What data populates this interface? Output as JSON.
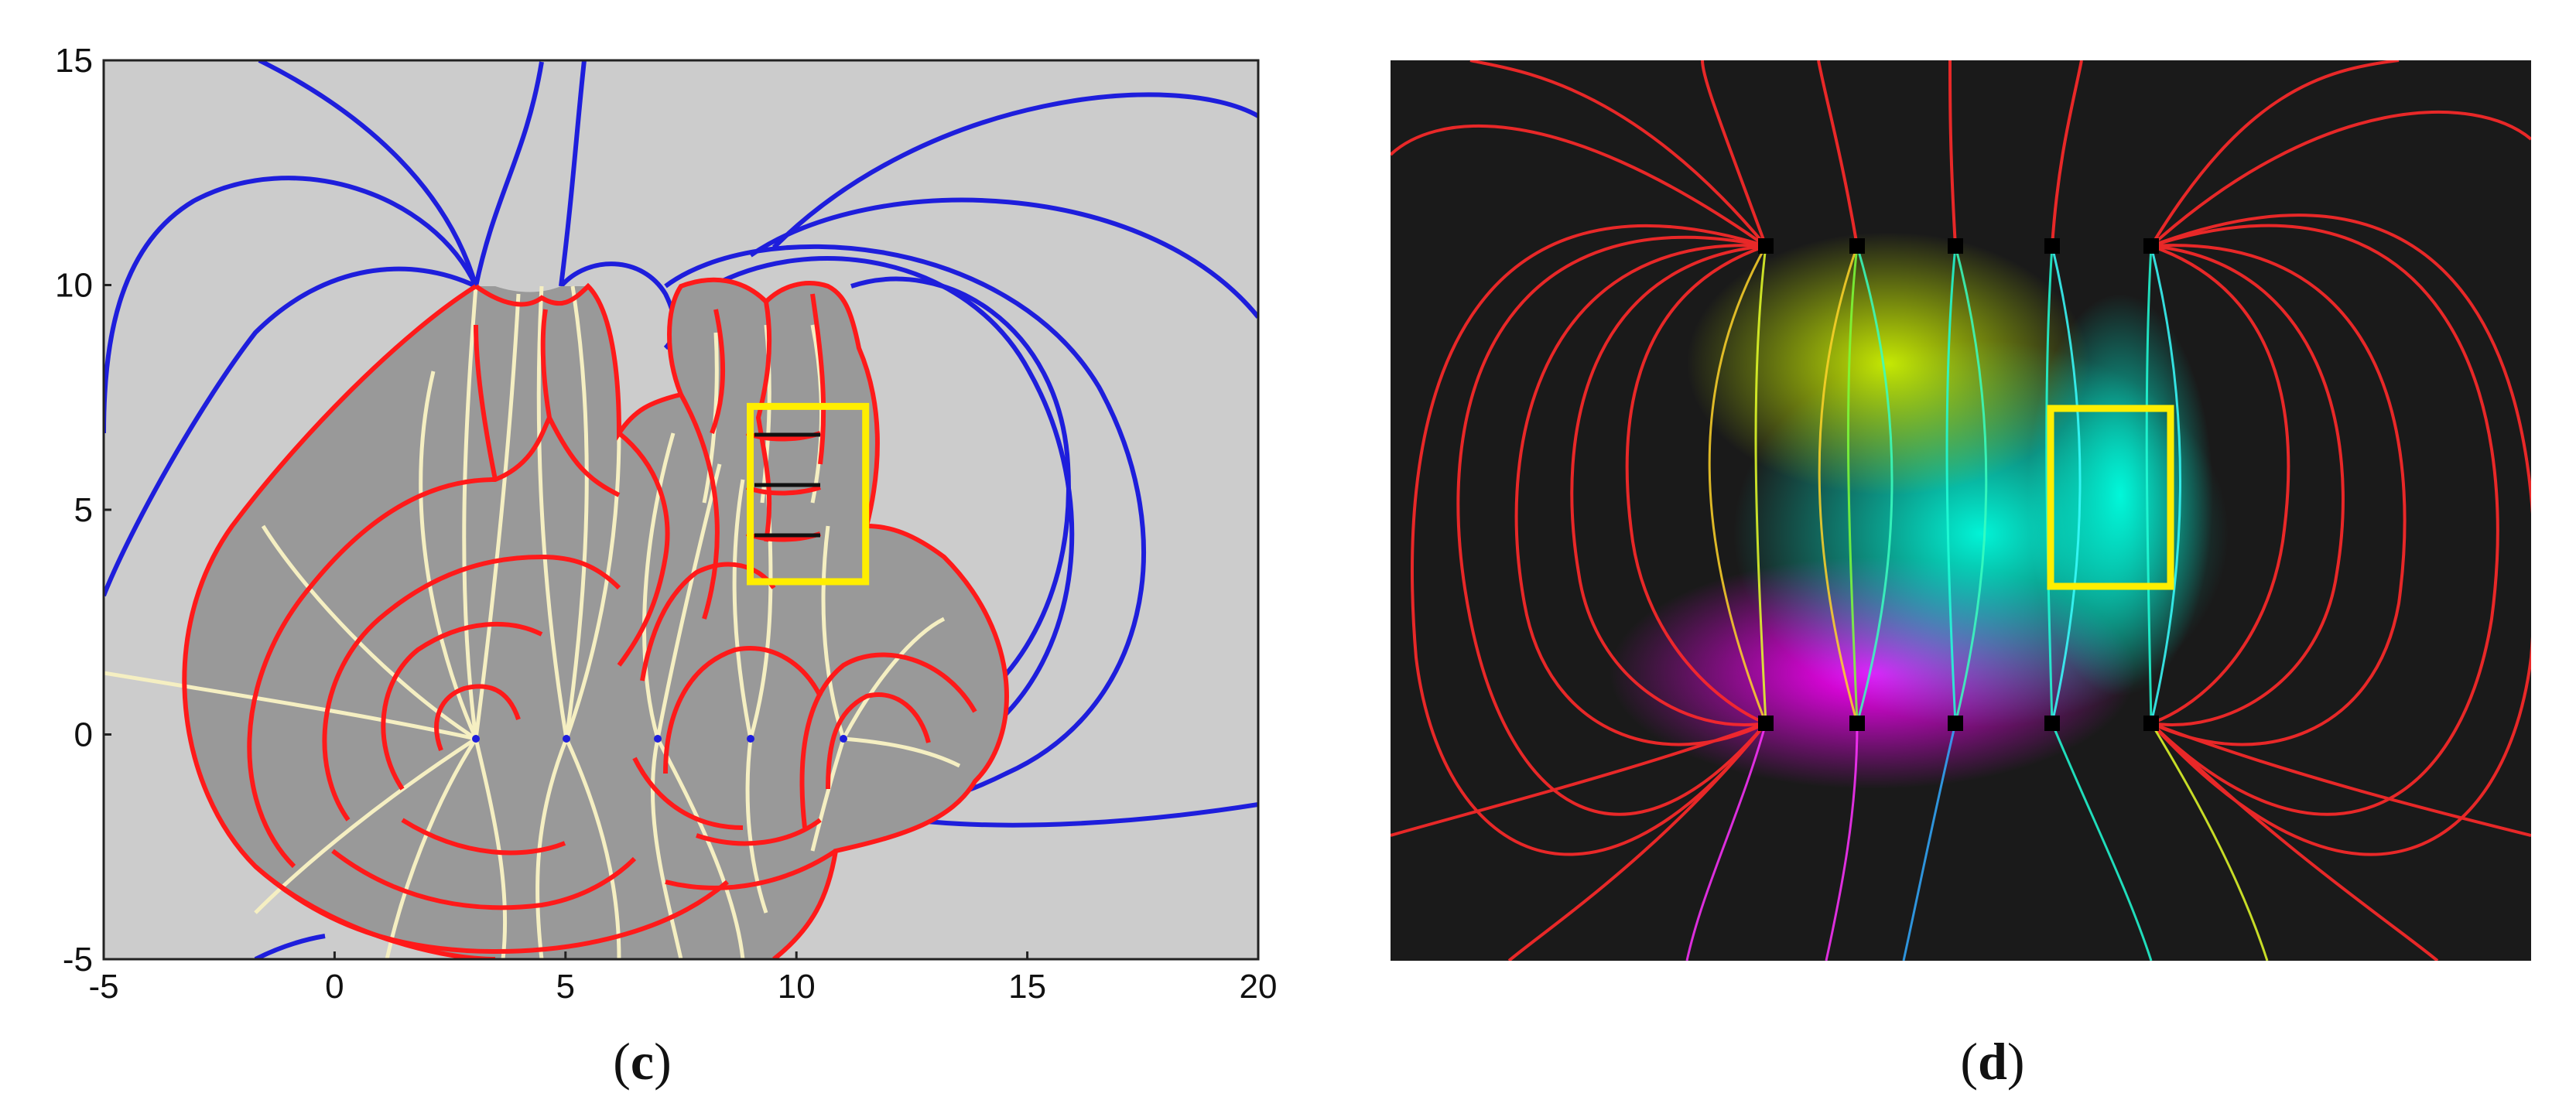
{
  "panels": {
    "left": {
      "caption_open": "(",
      "caption_letter": "c",
      "caption_close": ")"
    },
    "right": {
      "caption_open": "(",
      "caption_letter": "d",
      "caption_close": ")"
    }
  },
  "colors": {
    "plot_bg": "#cccccc",
    "region_fill": "#999999",
    "contour": "#ff1a1a",
    "field_line_outer": "#1e1edc",
    "field_line_inner": "#f5efc2",
    "highlight_box": "#ffee00",
    "sim_bg": "#1a1a1a"
  },
  "chart_data": {
    "type": "contour",
    "xlim": [
      -5,
      20
    ],
    "ylim": [
      -5,
      15
    ],
    "x_ticks": [
      "-5",
      "0",
      "5",
      "10",
      "15",
      "20"
    ],
    "y_ticks": [
      "-5",
      "0",
      "5",
      "10",
      "15"
    ],
    "sources_bottom": [
      [
        3,
        0
      ],
      [
        5,
        0
      ],
      [
        7,
        0
      ],
      [
        9,
        0
      ],
      [
        11,
        0
      ]
    ],
    "sources_top": [
      [
        3,
        10
      ],
      [
        5,
        10
      ],
      [
        7,
        10
      ],
      [
        9,
        10
      ],
      [
        11,
        10
      ]
    ],
    "highlight_box": {
      "x": [
        9,
        11.5
      ],
      "y": [
        3.4,
        7.3
      ]
    },
    "grid": false
  }
}
